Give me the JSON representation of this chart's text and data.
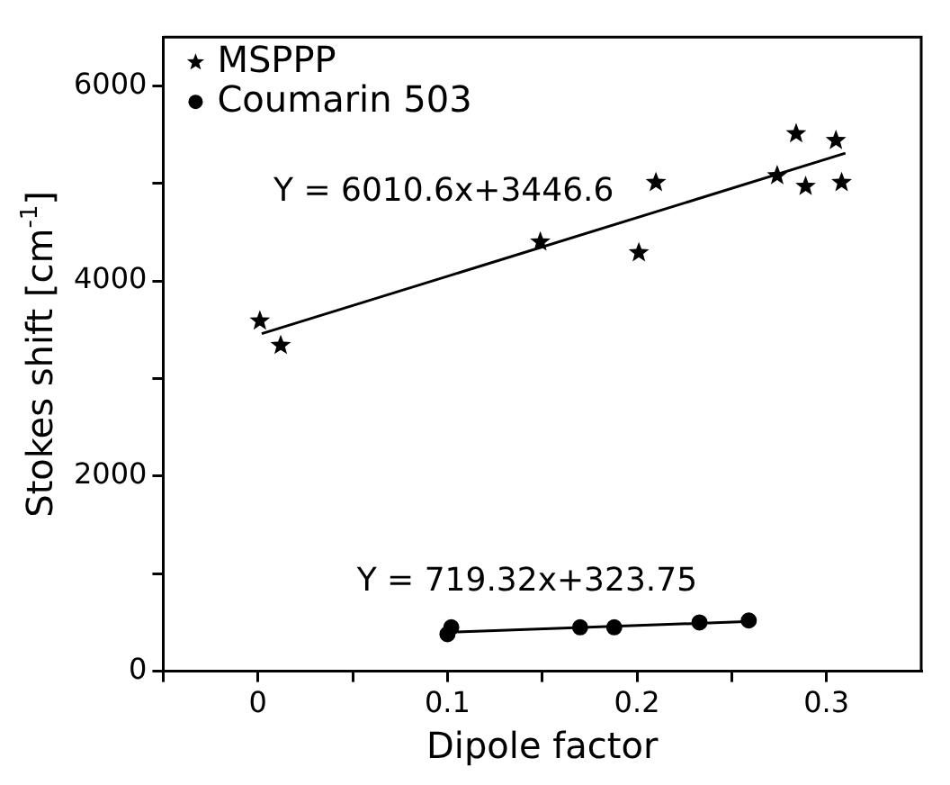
{
  "chart_data": {
    "type": "scatter",
    "xlabel": "Dipole factor",
    "ylabel": "Stokes shift [cm$^{-1}$]",
    "xlim": [
      -0.05,
      0.35
    ],
    "xticks": [
      {
        "value": -0.05,
        "label": null
      },
      0,
      {
        "value": 0.05,
        "label": null
      },
      0.1,
      {
        "value": 0.15,
        "label": null
      },
      0.2,
      {
        "value": 0.25,
        "label": null
      },
      0.3
    ],
    "ylim": [
      0,
      6500
    ],
    "yticks": [
      0,
      {
        "value": 1000,
        "label": null
      },
      2000,
      {
        "value": 3000,
        "label": null
      },
      4000,
      {
        "value": 5000,
        "label": null
      },
      6000
    ],
    "grid": false,
    "legend": "top left",
    "series": [
      {
        "name": "MSPPP",
        "color": "#000000",
        "marker": "star",
        "x": [
          0.001,
          0.012,
          0.149,
          0.201,
          0.21,
          0.274,
          0.284,
          0.289,
          0.305,
          0.308
        ],
        "values": [
          3590,
          3340,
          4400,
          4290,
          5010,
          5080,
          5510,
          4970,
          5440,
          5010
        ]
      },
      {
        "name": "Coumarin 503",
        "color": "#000000",
        "marker": "circle",
        "x": [
          0.1,
          0.102,
          0.17,
          0.188,
          0.233,
          0.259
        ],
        "values": [
          380,
          450,
          450,
          450,
          500,
          520
        ]
      },
      {
        "type": "line",
        "color": "#000000",
        "marker": "none",
        "x": [
          0.002,
          0.31
        ],
        "values": [
          3460,
          5310
        ]
      },
      {
        "type": "line",
        "color": "#000000",
        "marker": "none",
        "x": [
          0.1,
          0.26
        ],
        "values": [
          400,
          510
        ]
      }
    ],
    "annotations": [
      "Y = 6010.6x+3446.6",
      "Y = 719.32x+323.75"
    ]
  }
}
